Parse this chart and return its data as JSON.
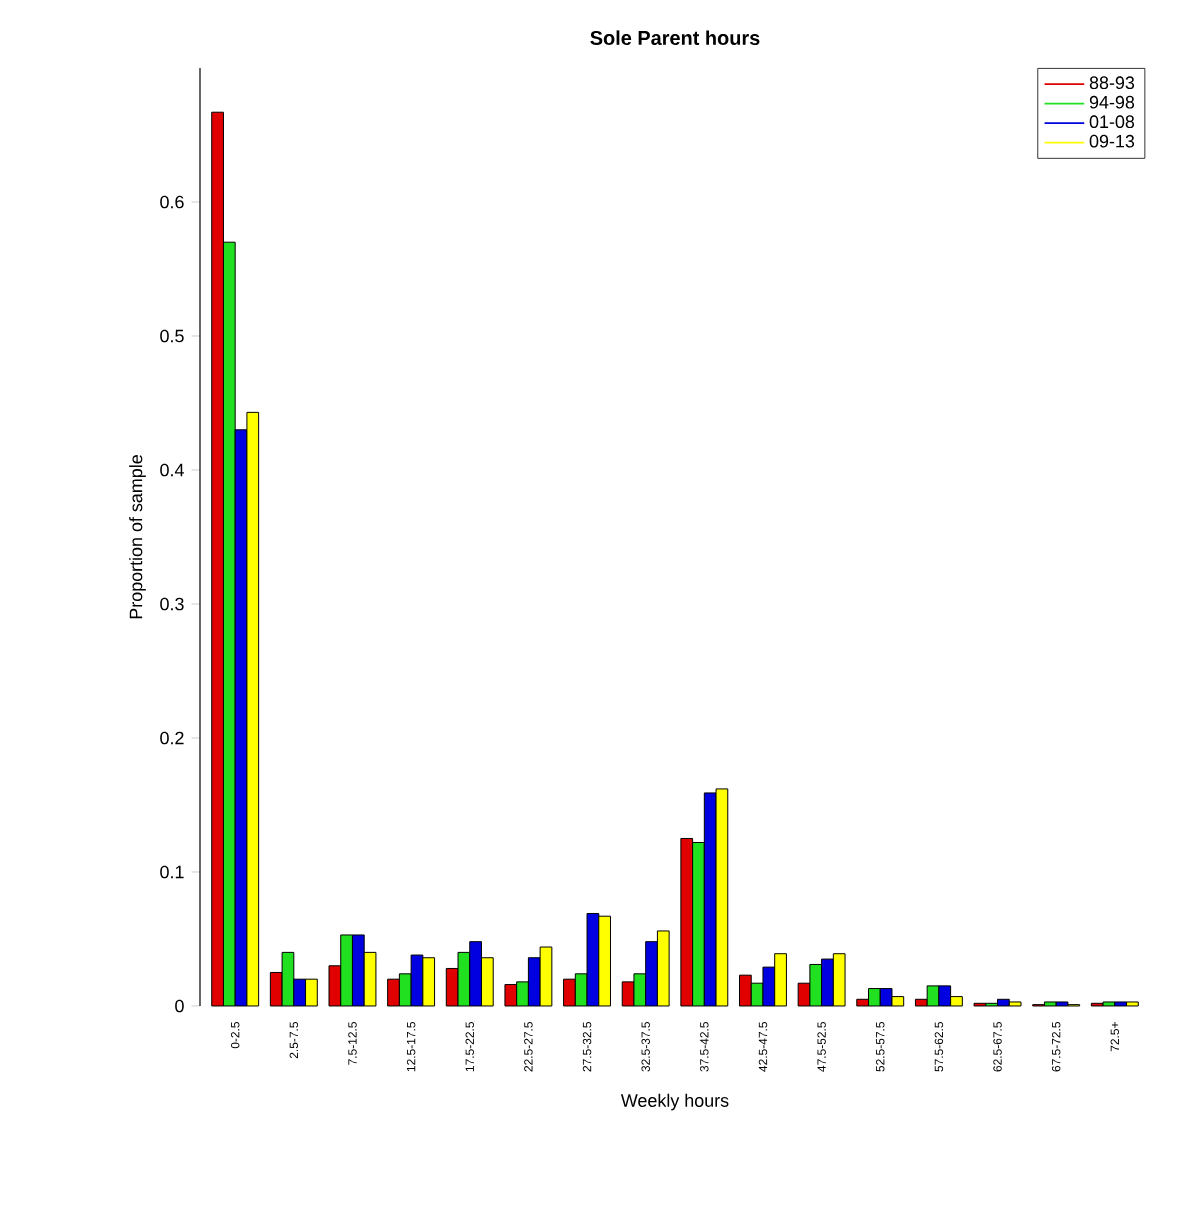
{
  "chart_data": {
    "type": "bar",
    "title": "Sole Parent hours",
    "xlabel": "Weekly hours",
    "ylabel": "Proportion of sample",
    "categories": [
      "0-2.5",
      "2.5-7.5",
      "7.5-12.5",
      "12.5-17.5",
      "17.5-22.5",
      "22.5-27.5",
      "27.5-32.5",
      "32.5-37.5",
      "37.5-42.5",
      "42.5-47.5",
      "47.5-52.5",
      "52.5-57.5",
      "57.5-62.5",
      "62.5-67.5",
      "67.5-72.5",
      "72.5+"
    ],
    "series": [
      {
        "name": "88-93",
        "color": "#e00000",
        "values": [
          0.667,
          0.025,
          0.03,
          0.02,
          0.028,
          0.016,
          0.02,
          0.018,
          0.125,
          0.023,
          0.017,
          0.005,
          0.005,
          0.002,
          0.001,
          0.002
        ]
      },
      {
        "name": "94-98",
        "color": "#20e020",
        "values": [
          0.57,
          0.04,
          0.053,
          0.024,
          0.04,
          0.018,
          0.024,
          0.024,
          0.122,
          0.017,
          0.031,
          0.013,
          0.015,
          0.002,
          0.003,
          0.003
        ]
      },
      {
        "name": "01-08",
        "color": "#0000e0",
        "values": [
          0.43,
          0.02,
          0.053,
          0.038,
          0.048,
          0.036,
          0.069,
          0.048,
          0.159,
          0.029,
          0.035,
          0.013,
          0.015,
          0.005,
          0.003,
          0.003
        ]
      },
      {
        "name": "09-13",
        "color": "#ffff00",
        "values": [
          0.443,
          0.02,
          0.04,
          0.036,
          0.036,
          0.044,
          0.067,
          0.056,
          0.162,
          0.039,
          0.039,
          0.007,
          0.007,
          0.003,
          0.001,
          0.003
        ]
      }
    ],
    "ylim": [
      0,
      0.7
    ],
    "yticks": [
      0,
      0.1,
      0.2,
      0.3,
      0.4,
      0.5,
      0.6
    ],
    "legend": "top right"
  }
}
